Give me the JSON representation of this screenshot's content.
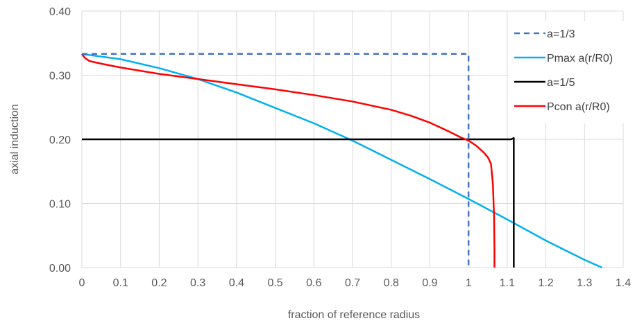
{
  "chart_data": {
    "type": "line",
    "xlabel": "fraction of reference radius",
    "ylabel": "axial induction",
    "xlim": [
      0,
      1.4
    ],
    "ylim": [
      0,
      0.4
    ],
    "x_ticks": [
      "0",
      "0.1",
      "0.2",
      "0.3",
      "0.4",
      "0.5",
      "0.6",
      "0.7",
      "0.8",
      "0.9",
      "1",
      "1.1",
      "1.2",
      "1.3",
      "1.4"
    ],
    "y_ticks": [
      "0.00",
      "0.10",
      "0.20",
      "0.30",
      "0.40"
    ],
    "grid": "vertical and horizontal",
    "legend_position": "top-right",
    "series": [
      {
        "name": "a=1/3",
        "color": "#4472C4",
        "dash": "dashed",
        "x": [
          0,
          1.0,
          1.0
        ],
        "y": [
          0.3333,
          0.3333,
          0
        ]
      },
      {
        "name": "Pmax a(r/R0)",
        "color": "#00B0F0",
        "dash": "solid",
        "x": [
          0,
          0.1,
          0.2,
          0.3,
          0.4,
          0.5,
          0.6,
          0.7,
          0.8,
          0.9,
          1.0,
          1.1,
          1.2,
          1.3,
          1.345
        ],
        "y": [
          0.333,
          0.325,
          0.311,
          0.294,
          0.273,
          0.249,
          0.225,
          0.198,
          0.168,
          0.138,
          0.107,
          0.075,
          0.042,
          0.012,
          0.0
        ]
      },
      {
        "name": "a=1/5",
        "color": "#000000",
        "dash": "solid",
        "x": [
          0,
          1.11,
          1.117,
          1.117
        ],
        "y": [
          0.2,
          0.2,
          0.202,
          0
        ]
      },
      {
        "name": "Pcon a(r/R0)",
        "color": "#FF0000",
        "dash": "solid",
        "x": [
          0,
          0.005,
          0.01,
          0.02,
          0.05,
          0.1,
          0.2,
          0.3,
          0.4,
          0.5,
          0.6,
          0.7,
          0.8,
          0.85,
          0.9,
          0.95,
          0.98,
          1.0,
          1.02,
          1.04,
          1.05,
          1.058,
          1.063,
          1.066,
          1.067,
          1.067
        ],
        "y": [
          0.333,
          0.329,
          0.326,
          0.322,
          0.318,
          0.312,
          0.302,
          0.294,
          0.286,
          0.278,
          0.269,
          0.259,
          0.246,
          0.237,
          0.226,
          0.212,
          0.203,
          0.198,
          0.19,
          0.179,
          0.172,
          0.162,
          0.13,
          0.08,
          0.03,
          0.0
        ]
      }
    ]
  }
}
